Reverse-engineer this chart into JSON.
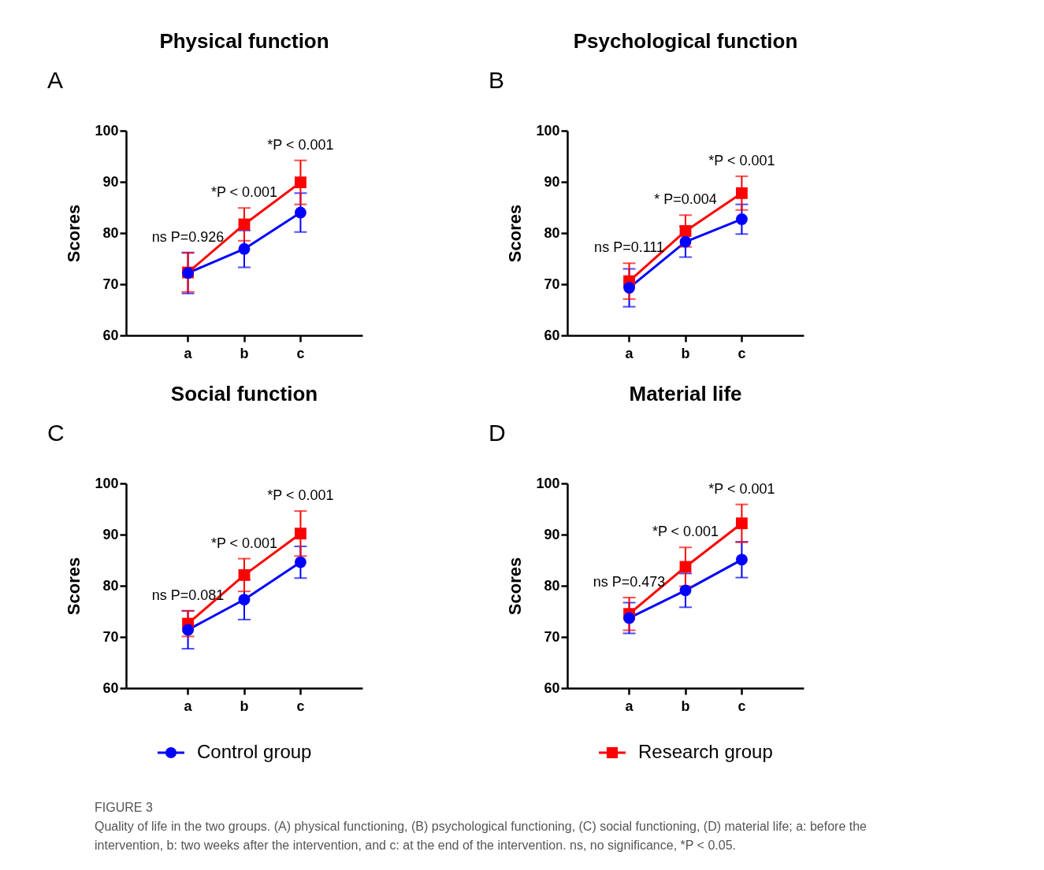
{
  "chart_data": [
    {
      "type": "line",
      "title": "Physical function",
      "ylabel": "Scores",
      "categories": [
        "a",
        "b",
        "c"
      ],
      "ylim": [
        60,
        100
      ],
      "yticks": [
        60,
        70,
        80,
        90,
        100
      ],
      "grid": false,
      "legend": "bottom",
      "line_style": "solid",
      "series": [
        {
          "name": "Control group",
          "color": "#0000ff",
          "marker": "circle",
          "values": [
            72.2,
            76.9,
            84.0
          ],
          "errors": [
            4.0,
            3.6,
            3.8
          ]
        },
        {
          "name": "Research group",
          "color": "#ff0000",
          "marker": "square",
          "values": [
            72.3,
            81.7,
            89.9
          ],
          "errors": [
            3.8,
            3.2,
            4.3
          ]
        }
      ],
      "annotations": [
        "A",
        {
          "text": "ns P=0.926",
          "x": "a",
          "y": 76.2
        },
        {
          "text": "*P < 0.001",
          "x": "b",
          "y": 84.9
        },
        {
          "text": "*P < 0.001",
          "x": "c",
          "y": 94.2
        }
      ]
    },
    {
      "type": "line",
      "title": "Psychological function",
      "ylabel": "Scores",
      "categories": [
        "a",
        "b",
        "c"
      ],
      "ylim": [
        60,
        100
      ],
      "yticks": [
        60,
        70,
        80,
        90,
        100
      ],
      "grid": false,
      "legend": "bottom",
      "line_style": "solid",
      "series": [
        {
          "name": "Control group",
          "color": "#0000ff",
          "marker": "circle",
          "values": [
            69.3,
            78.3,
            82.7
          ],
          "errors": [
            3.7,
            3.0,
            2.9
          ]
        },
        {
          "name": "Research group",
          "color": "#ff0000",
          "marker": "square",
          "values": [
            70.6,
            80.4,
            87.8
          ],
          "errors": [
            3.5,
            3.1,
            3.3
          ]
        }
      ],
      "annotations": [
        "B",
        {
          "text": "ns P=0.111",
          "x": "a",
          "y": 74.1
        },
        {
          "text": "* P=0.004",
          "x": "b",
          "y": 83.5
        },
        {
          "text": "*P < 0.001",
          "x": "c",
          "y": 91.1
        }
      ]
    },
    {
      "type": "line",
      "title": "Social function",
      "ylabel": "Scores",
      "categories": [
        "a",
        "b",
        "c"
      ],
      "ylim": [
        60,
        100
      ],
      "yticks": [
        60,
        70,
        80,
        90,
        100
      ],
      "grid": false,
      "legend": "bottom",
      "line_style": "solid",
      "series": [
        {
          "name": "Control group",
          "color": "#0000ff",
          "marker": "circle",
          "values": [
            71.4,
            77.3,
            84.6
          ],
          "errors": [
            3.7,
            3.9,
            3.1
          ]
        },
        {
          "name": "Research group",
          "color": "#ff0000",
          "marker": "square",
          "values": [
            72.6,
            82.1,
            90.2
          ],
          "errors": [
            2.5,
            3.2,
            4.4
          ]
        }
      ],
      "annotations": [
        "C",
        {
          "text": "ns P=0.081",
          "x": "a",
          "y": 75.1
        },
        {
          "text": "*P < 0.001",
          "x": "b",
          "y": 85.3
        },
        {
          "text": "*P < 0.001",
          "x": "c",
          "y": 94.6
        }
      ]
    },
    {
      "type": "line",
      "title": "Material life",
      "ylabel": "Scores",
      "categories": [
        "a",
        "b",
        "c"
      ],
      "ylim": [
        60,
        100
      ],
      "yticks": [
        60,
        70,
        80,
        90,
        100
      ],
      "grid": false,
      "legend": "bottom",
      "line_style": "solid",
      "series": [
        {
          "name": "Control group",
          "color": "#0000ff",
          "marker": "circle",
          "values": [
            73.7,
            79.1,
            85.1
          ],
          "errors": [
            3.0,
            3.3,
            3.5
          ]
        },
        {
          "name": "Research group",
          "color": "#ff0000",
          "marker": "square",
          "values": [
            74.5,
            83.7,
            92.2
          ],
          "errors": [
            3.2,
            3.8,
            3.7
          ]
        }
      ],
      "annotations": [
        "D",
        {
          "text": "ns P=0.473",
          "x": "a",
          "y": 77.7
        },
        {
          "text": "*P < 0.001",
          "x": "b",
          "y": 87.5
        },
        {
          "text": "*P < 0.001",
          "x": "c",
          "y": 95.9
        },
        "FIGURE 3",
        "Quality of life in the two groups. (A) physical functioning, (B) psychological functioning, (C) social functioning, (D) material life; a: before the intervention, b: two weeks after the intervention, and c: at the end of the intervention. ns, no significance, *P < 0.05."
      ]
    }
  ]
}
